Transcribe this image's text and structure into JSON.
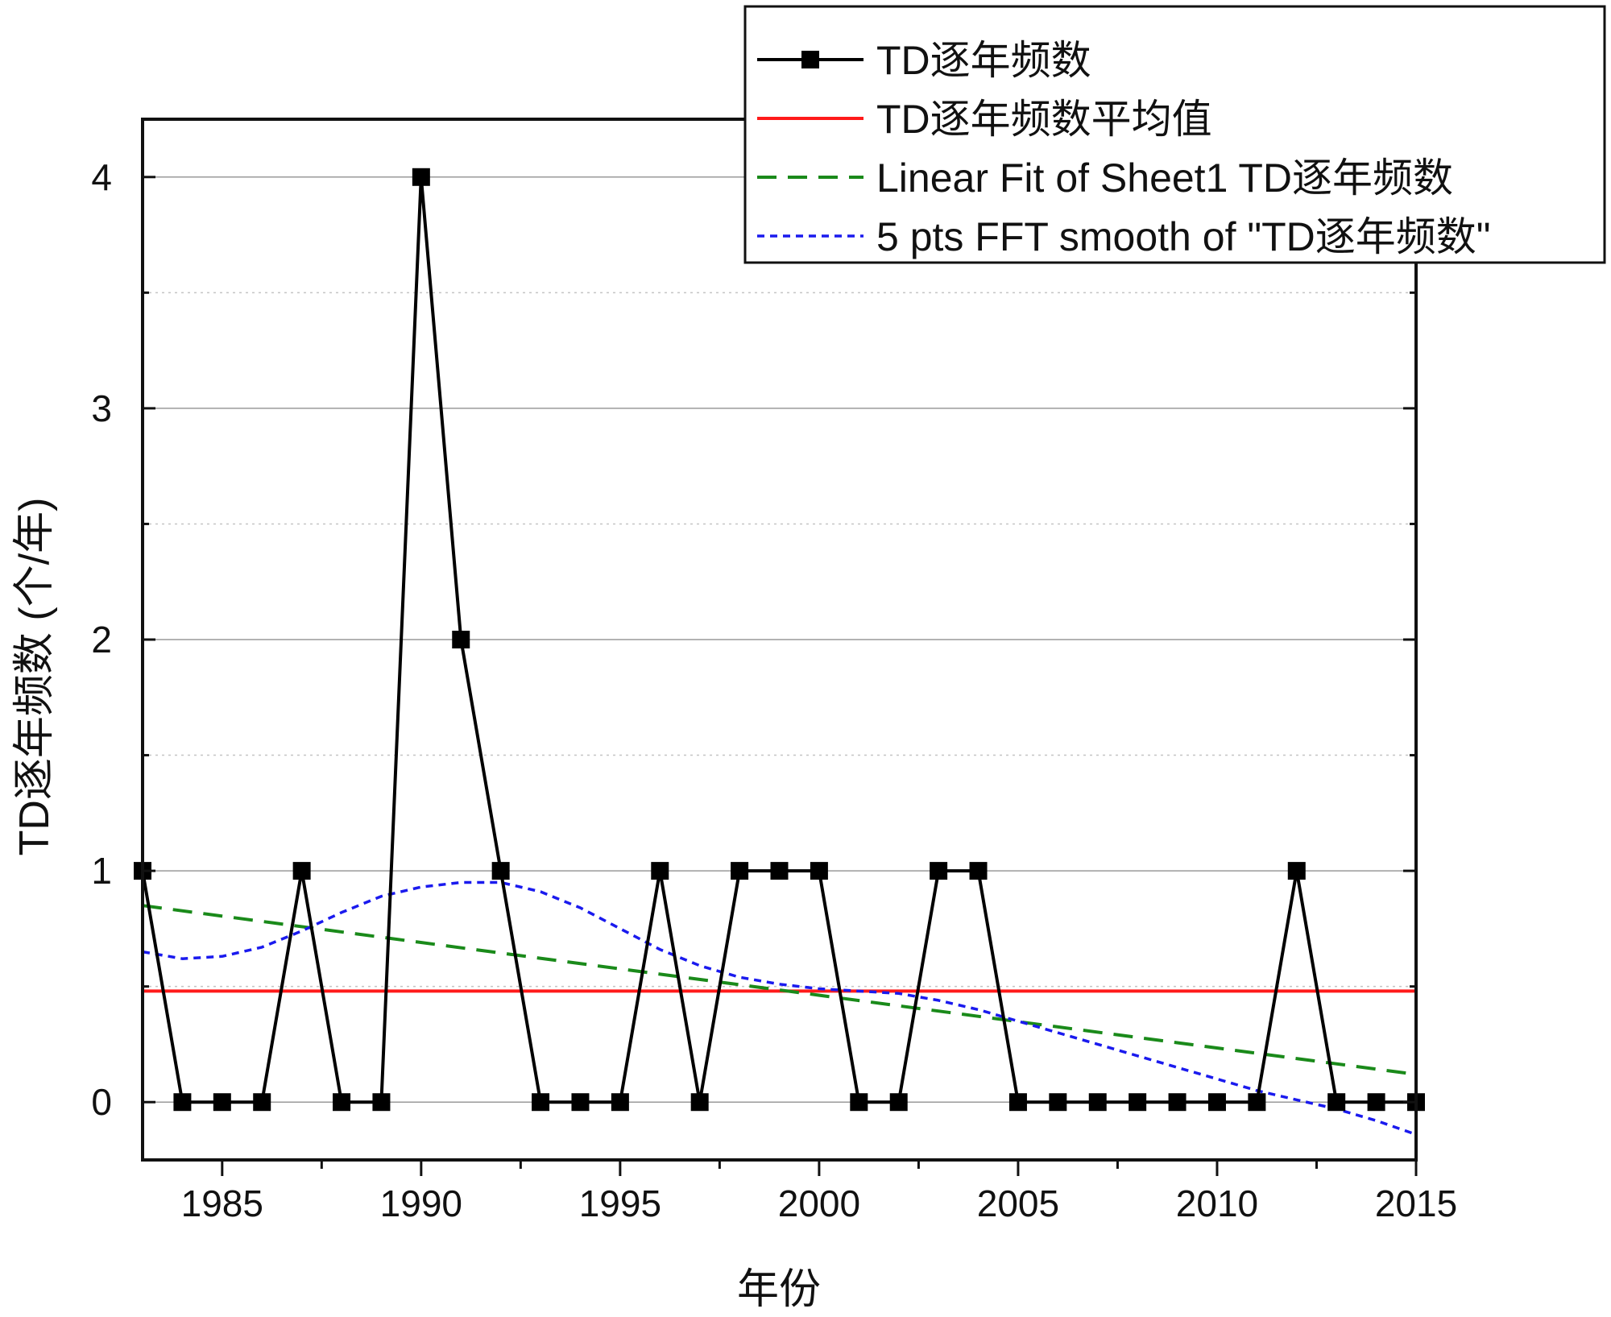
{
  "chart_data": {
    "type": "line",
    "title": "",
    "xlabel": "年份",
    "ylabel": "TD逐年频数 (个/年)",
    "xlim": [
      1983,
      2015
    ],
    "ylim": [
      -0.25,
      4.25
    ],
    "x_ticks": [
      1985,
      1990,
      1995,
      2000,
      2005,
      2010,
      2015
    ],
    "y_ticks": [
      0,
      1,
      2,
      3,
      4
    ],
    "grid": "horizontal, major solid gray, minor dotted",
    "legend_position": "top-right",
    "series": [
      {
        "name": "TD逐年频数",
        "style": "solid line with square markers",
        "color": "#000000",
        "x": [
          1983,
          1984,
          1985,
          1986,
          1987,
          1988,
          1989,
          1990,
          1991,
          1992,
          1993,
          1994,
          1995,
          1996,
          1997,
          1998,
          1999,
          2000,
          2001,
          2002,
          2003,
          2004,
          2005,
          2006,
          2007,
          2008,
          2009,
          2010,
          2011,
          2012,
          2013,
          2014,
          2015
        ],
        "values": [
          1,
          0,
          0,
          0,
          1,
          0,
          0,
          4,
          2,
          1,
          0,
          0,
          0,
          1,
          0,
          1,
          1,
          1,
          0,
          0,
          1,
          1,
          0,
          0,
          0,
          0,
          0,
          0,
          0,
          1,
          0,
          0,
          0
        ]
      },
      {
        "name": "TD逐年频数平均值",
        "style": "solid line",
        "color": "#ff1a1a",
        "x": [
          1983,
          2015
        ],
        "values": [
          0.48,
          0.48
        ]
      },
      {
        "name": "Linear Fit of Sheet1 TD逐年频数",
        "style": "dashed line",
        "color": "#1a8a1a",
        "x": [
          1983,
          2015
        ],
        "values": [
          0.85,
          0.12
        ]
      },
      {
        "name": "5 pts FFT smooth of \"TD逐年频数\"",
        "style": "dotted line",
        "color": "#1a1aee",
        "x": [
          1983,
          1984,
          1985,
          1986,
          1987,
          1988,
          1989,
          1990,
          1991,
          1992,
          1993,
          1994,
          1995,
          1996,
          1997,
          1998,
          1999,
          2000,
          2001,
          2002,
          2003,
          2004,
          2005,
          2006,
          2007,
          2008,
          2009,
          2010,
          2011,
          2012,
          2013,
          2014,
          2015
        ],
        "values": [
          0.65,
          0.62,
          0.63,
          0.67,
          0.74,
          0.82,
          0.89,
          0.93,
          0.95,
          0.95,
          0.91,
          0.84,
          0.75,
          0.66,
          0.59,
          0.54,
          0.51,
          0.49,
          0.48,
          0.47,
          0.44,
          0.4,
          0.35,
          0.3,
          0.25,
          0.2,
          0.15,
          0.1,
          0.05,
          0.01,
          -0.03,
          -0.08,
          -0.14
        ]
      }
    ]
  }
}
